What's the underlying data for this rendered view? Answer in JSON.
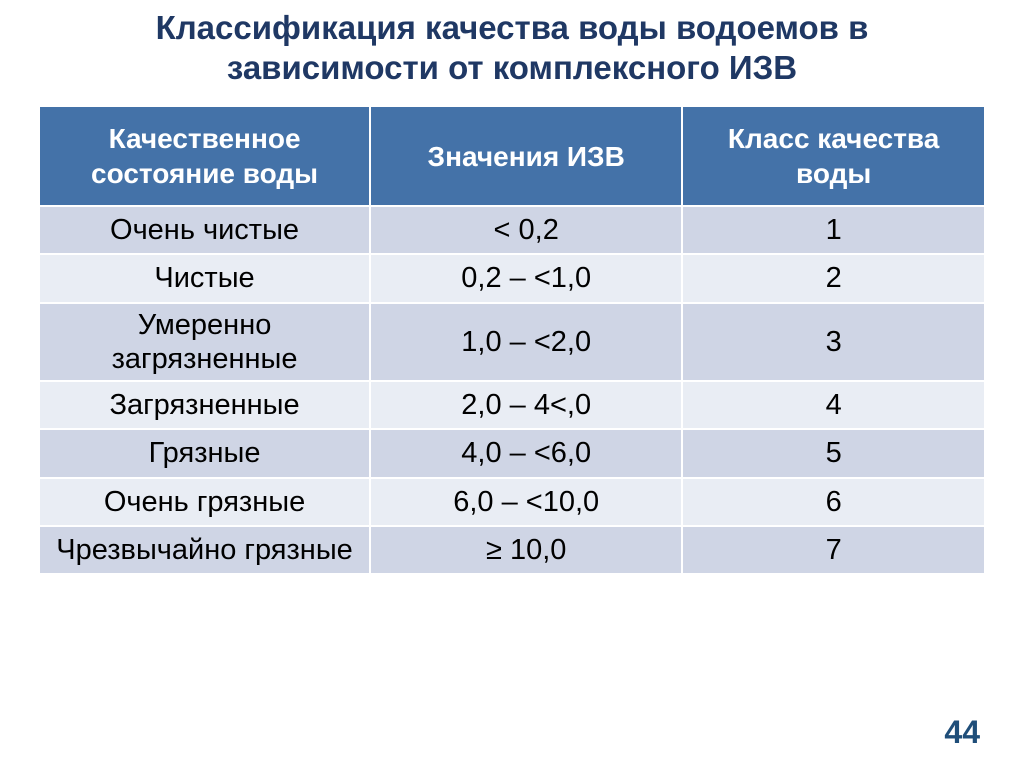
{
  "title": "Классификация качества воды водоемов в зависимости от комплексного ИЗВ",
  "pageNumber": "44",
  "colors": {
    "titleText": "#1f3864",
    "headerBg": "#4472a8",
    "headerText": "#ffffff",
    "rowOddBg": "#cfd5e5",
    "rowEvenBg": "#e9edf4",
    "cellText": "#000000",
    "border": "#ffffff",
    "pageNumberText": "#1f4e79",
    "background": "#ffffff"
  },
  "typography": {
    "titleFontSize": 33,
    "headerFontSize": 28,
    "cellFontSize": 29,
    "pageNumberFontSize": 32
  },
  "table": {
    "columns": [
      "Качественное состояние воды",
      "Значения ИЗВ",
      "Класс качества воды"
    ],
    "columnWidths": [
      "35%",
      "33%",
      "32%"
    ],
    "rows": [
      {
        "state": "Очень чистые",
        "izv": "< 0,2",
        "class": "1",
        "multiline": false
      },
      {
        "state": "Чистые",
        "izv": "0,2 – <1,0",
        "class": "2",
        "multiline": false
      },
      {
        "state": "Умеренно загрязненные",
        "izv": "1,0 – <2,0",
        "class": "3",
        "multiline": true
      },
      {
        "state": "Загрязненные",
        "izv": "2,0 – 4<,0",
        "class": "4",
        "multiline": false
      },
      {
        "state": "Грязные",
        "izv": "4,0 – <6,0",
        "class": "5",
        "multiline": false
      },
      {
        "state": "Очень грязные",
        "izv": "6,0 – <10,0",
        "class": "6",
        "multiline": false
      },
      {
        "state": "Чрезвычайно грязные",
        "izv": "≥ 10,0",
        "class": "7",
        "multiline": true
      }
    ]
  }
}
